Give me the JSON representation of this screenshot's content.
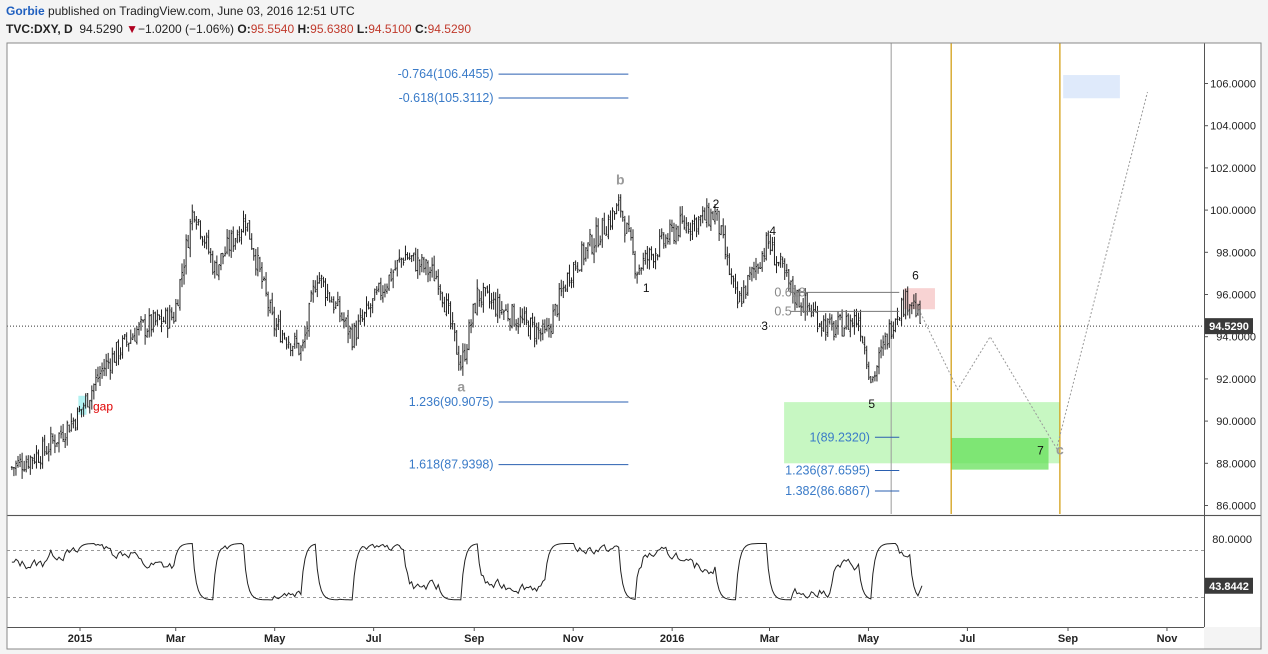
{
  "header": {
    "author": "Gorbie",
    "published": "published on TradingView.com, June 03, 2016 12:51 UTC",
    "symbol": "TVC:DXY, D",
    "last": "94.5290",
    "change": "−1.0200 (−1.06%)",
    "o_label": "O:",
    "o": "95.5540",
    "h_label": "H:",
    "h": "95.6380",
    "l_label": "L:",
    "l": "94.5100",
    "c_label": "C:",
    "c": "94.5290"
  },
  "colors": {
    "candle": "#222222",
    "level_line": "#2a5fb0",
    "level_text": "#3a7bc8",
    "green_zone": "#99f08f",
    "green_zone_dark": "#66e05a",
    "red_zone": "#f6c8c8",
    "blue_zone": "#dce8fb",
    "cyan_gap": "#a8f0f0",
    "vline_orange": "#d4a017",
    "vline_gray": "#9a9a9a"
  },
  "chart_data": {
    "type": "candlestick",
    "symbol": "TVC:DXY",
    "interval": "D",
    "ylim": [
      85.6,
      107.4
    ],
    "price_axis_ticks": [
      "86.0000",
      "88.0000",
      "90.0000",
      "92.0000",
      "94.0000",
      "96.0000",
      "98.0000",
      "100.0000",
      "102.0000",
      "104.0000",
      "106.0000"
    ],
    "x_axis_labels": [
      "2015",
      "Mar",
      "May",
      "Jul",
      "Sep",
      "Nov",
      "2016",
      "Mar",
      "May",
      "Jul",
      "Sep",
      "Nov"
    ],
    "last_price_label": "94.5290",
    "price_path": [
      [
        "2014-11-20",
        87.8
      ],
      [
        "2014-12-10",
        88.6
      ],
      [
        "2014-12-31",
        90.3
      ],
      [
        "2015-01-15",
        92.5
      ],
      [
        "2015-02-05",
        94.3
      ],
      [
        "2015-02-28",
        95.0
      ],
      [
        "2015-03-12",
        100.2
      ],
      [
        "2015-03-25",
        97.2
      ],
      [
        "2015-04-13",
        99.6
      ],
      [
        "2015-04-30",
        94.6
      ],
      [
        "2015-05-18",
        93.3
      ],
      [
        "2015-05-27",
        97.0
      ],
      [
        "2015-06-18",
        94.0
      ],
      [
        "2015-07-08",
        96.5
      ],
      [
        "2015-07-20",
        97.9
      ],
      [
        "2015-08-10",
        96.8
      ],
      [
        "2015-08-24",
        92.6
      ],
      [
        "2015-09-03",
        96.0
      ],
      [
        "2015-10-15",
        94.0
      ],
      [
        "2015-10-30",
        97.1
      ],
      [
        "2015-11-30",
        100.2
      ],
      [
        "2015-12-10",
        97.2
      ],
      [
        "2016-01-05",
        99.2
      ],
      [
        "2016-01-28",
        99.8
      ],
      [
        "2016-02-10",
        95.5
      ],
      [
        "2016-02-29",
        98.5
      ],
      [
        "2016-03-15",
        96.1
      ],
      [
        "2016-04-08",
        94.3
      ],
      [
        "2016-04-25",
        94.9
      ],
      [
        "2016-05-03",
        91.9
      ],
      [
        "2016-05-18",
        95.2
      ],
      [
        "2016-05-27",
        95.9
      ],
      [
        "2016-06-03",
        94.5
      ]
    ],
    "indicator": {
      "ticks": [
        "80.0000"
      ],
      "last_label": "43.8442",
      "upper_level": 70,
      "lower_level": 30,
      "ylim": [
        10,
        90
      ]
    },
    "fib_levels": [
      {
        "label": "-0.764(106.4455)",
        "value": 106.4455,
        "x_start": "2015-09-16",
        "x_end": "2015-12-05"
      },
      {
        "label": "-0.618(105.3112)",
        "value": 105.3112,
        "x_start": "2015-09-16",
        "x_end": "2015-12-05"
      },
      {
        "label": "1.236(90.9075)",
        "value": 90.9075,
        "x_start": "2015-09-16",
        "x_end": "2015-12-05"
      },
      {
        "label": "1.618(87.9398)",
        "value": 87.9398,
        "x_start": "2015-09-16",
        "x_end": "2015-12-05"
      },
      {
        "label": "1(89.2320)",
        "value": 89.232,
        "x_start": "2016-05-05",
        "x_end": "2016-05-20"
      },
      {
        "label": "1.236(87.6595)",
        "value": 87.6595,
        "x_start": "2016-05-05",
        "x_end": "2016-05-20"
      },
      {
        "label": "1.382(86.6867)",
        "value": 86.6867,
        "x_start": "2016-05-05",
        "x_end": "2016-05-20"
      }
    ],
    "retracement_labels": [
      {
        "label": "0.618",
        "value": 96.1,
        "x_start": "2016-03-14",
        "x_end": "2016-05-20",
        "text_date": "2016-03-04"
      },
      {
        "label": "0.5",
        "value": 95.2,
        "x_start": "2016-03-14",
        "x_end": "2016-05-20",
        "text_date": "2016-03-04"
      }
    ],
    "wave_labels": [
      {
        "label": "a",
        "date": "2015-08-24",
        "value": 91.6,
        "style": "gray"
      },
      {
        "label": "b",
        "date": "2015-11-30",
        "value": 101.4,
        "style": "gray"
      },
      {
        "label": "1",
        "date": "2015-12-16",
        "value": 96.3,
        "style": "dark"
      },
      {
        "label": "2",
        "date": "2016-01-28",
        "value": 100.3,
        "style": "dark"
      },
      {
        "label": "3",
        "date": "2016-02-27",
        "value": 94.5,
        "style": "dark"
      },
      {
        "label": "4",
        "date": "2016-03-03",
        "value": 99.0,
        "style": "dark"
      },
      {
        "label": "5",
        "date": "2016-05-03",
        "value": 90.8,
        "style": "dark"
      },
      {
        "label": "6",
        "date": "2016-05-30",
        "value": 96.9,
        "style": "dark"
      },
      {
        "label": "7",
        "date": "2016-08-15",
        "value": 88.6,
        "style": "dark"
      },
      {
        "label": "c",
        "date": "2016-08-27",
        "value": 88.6,
        "style": "gray"
      }
    ],
    "annotations": [
      {
        "label": "gap",
        "date": "2015-01-09",
        "value": 90.7
      }
    ],
    "zones": [
      {
        "kind": "green",
        "x_start": "2016-03-10",
        "x_end": "2016-08-27",
        "y_top": 90.9,
        "y_bottom": 88.0
      },
      {
        "kind": "green_dark",
        "x_start": "2016-06-21",
        "x_end": "2016-08-20",
        "y_top": 89.2,
        "y_bottom": 87.7
      },
      {
        "kind": "red",
        "x_start": "2016-05-23",
        "x_end": "2016-06-11",
        "y_top": 96.3,
        "y_bottom": 95.3
      },
      {
        "kind": "blue",
        "x_start": "2016-08-29",
        "x_end": "2016-10-03",
        "y_top": 106.4,
        "y_bottom": 105.3
      },
      {
        "kind": "cyan",
        "x_start": "2014-12-31",
        "x_end": "2015-01-05",
        "y_top": 91.2,
        "y_bottom": 90.3
      }
    ],
    "vertical_lines": [
      {
        "date": "2016-05-15",
        "kind": "gray"
      },
      {
        "date": "2016-06-21",
        "kind": "orange"
      },
      {
        "date": "2016-08-27",
        "kind": "orange"
      }
    ],
    "projection_path": [
      [
        "2016-06-01",
        95.3
      ],
      [
        "2016-06-25",
        91.5
      ],
      [
        "2016-07-15",
        94.0
      ],
      [
        "2016-08-25",
        88.7
      ],
      [
        "2016-10-20",
        105.6
      ]
    ]
  }
}
